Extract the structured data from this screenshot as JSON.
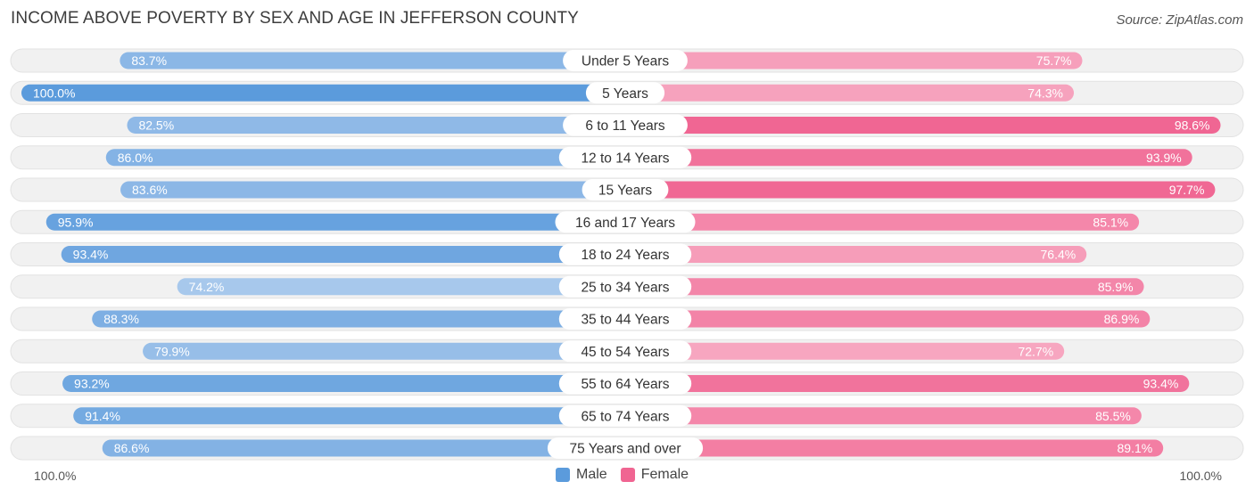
{
  "title": "INCOME ABOVE POVERTY BY SEX AND AGE IN JEFFERSON COUNTY",
  "source": "Source: ZipAtlas.com",
  "colors": {
    "male_dark": "#5b9bdc",
    "male_light": "#a8c8ec",
    "female_dark": "#f06592",
    "female_light": "#f7a8c1",
    "row_bg": "#f1f1f1",
    "row_border": "#e2e2e2"
  },
  "axis": {
    "left_label": "100.0%",
    "right_label": "100.0%"
  },
  "legend": {
    "male": "Male",
    "female": "Female"
  },
  "chart_data": {
    "type": "bar",
    "orientation": "horizontal-diverging",
    "xlim": [
      0,
      100
    ],
    "categories": [
      "Under 5 Years",
      "5 Years",
      "6 to 11 Years",
      "12 to 14 Years",
      "15 Years",
      "16 and 17 Years",
      "18 to 24 Years",
      "25 to 34 Years",
      "35 to 44 Years",
      "45 to 54 Years",
      "55 to 64 Years",
      "65 to 74 Years",
      "75 Years and over"
    ],
    "series": [
      {
        "name": "Male",
        "values": [
          83.7,
          100.0,
          82.5,
          86.0,
          83.6,
          95.9,
          93.4,
          74.2,
          88.3,
          79.9,
          93.2,
          91.4,
          86.6
        ],
        "labels": [
          "83.7%",
          "100.0%",
          "82.5%",
          "86.0%",
          "83.6%",
          "95.9%",
          "93.4%",
          "74.2%",
          "88.3%",
          "79.9%",
          "93.2%",
          "91.4%",
          "86.6%"
        ]
      },
      {
        "name": "Female",
        "values": [
          75.7,
          74.3,
          98.6,
          93.9,
          97.7,
          85.1,
          76.4,
          85.9,
          86.9,
          72.7,
          93.4,
          85.5,
          89.1
        ],
        "labels": [
          "75.7%",
          "74.3%",
          "98.6%",
          "93.9%",
          "97.7%",
          "85.1%",
          "76.4%",
          "85.9%",
          "86.9%",
          "72.7%",
          "93.4%",
          "85.5%",
          "89.1%"
        ]
      }
    ]
  }
}
